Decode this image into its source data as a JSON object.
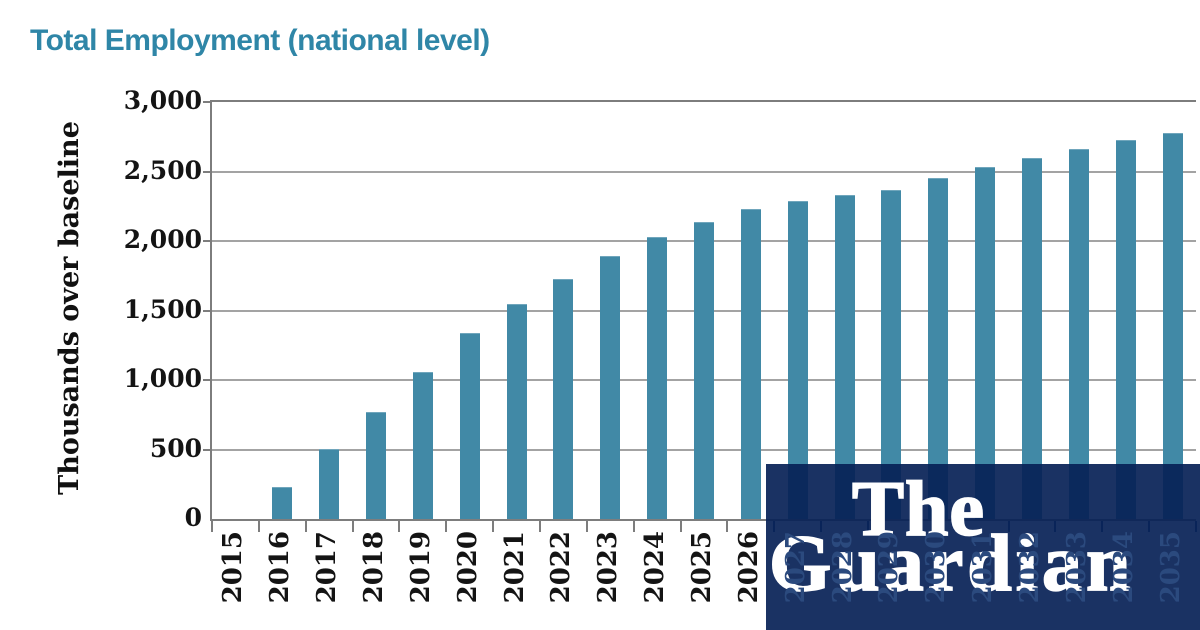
{
  "title": {
    "text": "Total Employment (national level)"
  },
  "chart_data": {
    "type": "bar",
    "title": "Total Employment (national level)",
    "xlabel": "",
    "ylabel": "Thousands over baseline",
    "categories": [
      "2015",
      "2016",
      "2017",
      "2018",
      "2019",
      "2020",
      "2021",
      "2022",
      "2023",
      "2024",
      "2025",
      "2026",
      "2027",
      "2028",
      "2029",
      "2030",
      "2031",
      "2032",
      "2033",
      "2034",
      "2035"
    ],
    "values": [
      0,
      230,
      500,
      770,
      1060,
      1340,
      1550,
      1730,
      1890,
      2030,
      2140,
      2230,
      2290,
      2330,
      2370,
      2450,
      2530,
      2600,
      2660,
      2730,
      2780
    ],
    "ylim": [
      0,
      3000
    ],
    "yticks": [
      0,
      500,
      1000,
      1500,
      2000,
      2500,
      3000
    ],
    "ytick_labels": [
      "0",
      "500",
      "1,000",
      "1,500",
      "2,000",
      "2,500",
      "3,000"
    ],
    "grid": "horizontal",
    "legend": "none"
  },
  "colors": {
    "title": "#2f86a7",
    "bar": "#4189a6",
    "grid": "#a3a3a3",
    "axis": "#7d7d7d",
    "tick_label": "#141414",
    "label_behind_logo": "#2b4a7e",
    "logo_overlay": "rgba(6,33,86,0.92)",
    "logo_brand_blue": "#052962",
    "logo_text": "#ffffff",
    "background": "#ffffff"
  },
  "watermark": {
    "line1": "The",
    "line2": "Guardian"
  }
}
